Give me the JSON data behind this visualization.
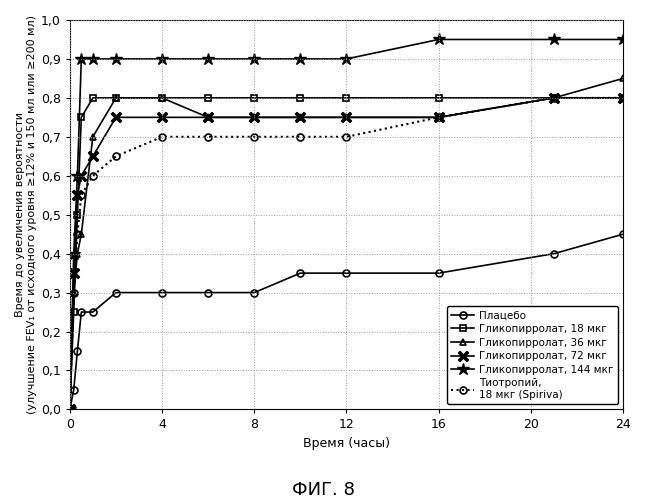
{
  "title": "",
  "xlabel": "Время (часы)",
  "ylabel": "Время до увеличения вероятности\n(улучшение FEV₁ от исходного уровня ≥12% и 150 мл или ≥200 мл)",
  "fig_caption": "ФИГ. 8",
  "xlim": [
    0,
    24
  ],
  "ylim": [
    0.0,
    1.0
  ],
  "xticks": [
    0,
    4,
    8,
    12,
    16,
    20,
    24
  ],
  "yticks": [
    0.0,
    0.1,
    0.2,
    0.3,
    0.4,
    0.5,
    0.6,
    0.7,
    0.8,
    0.9,
    1.0
  ],
  "series": [
    {
      "label": "Плацебо",
      "x": [
        0,
        0.17,
        0.33,
        0.5,
        1,
        2,
        4,
        6,
        8,
        10,
        12,
        16,
        21,
        24
      ],
      "y": [
        0.0,
        0.05,
        0.15,
        0.25,
        0.25,
        0.3,
        0.3,
        0.3,
        0.3,
        0.35,
        0.35,
        0.35,
        0.4,
        0.45
      ],
      "color": "#000000",
      "linestyle": "-",
      "marker": "o",
      "markersize": 5,
      "linewidth": 1.2,
      "fillstyle": "none",
      "markeredgewidth": 1.2
    },
    {
      "label": "Гликопирролат, 18 мкг",
      "x": [
        0,
        0.17,
        0.33,
        0.5,
        1,
        2,
        4,
        6,
        8,
        10,
        12,
        16,
        21,
        24
      ],
      "y": [
        0.0,
        0.25,
        0.5,
        0.75,
        0.8,
        0.8,
        0.8,
        0.8,
        0.8,
        0.8,
        0.8,
        0.8,
        0.8,
        0.8
      ],
      "color": "#000000",
      "linestyle": "-",
      "marker": "s",
      "markersize": 5,
      "linewidth": 1.2,
      "fillstyle": "none",
      "markeredgewidth": 1.2
    },
    {
      "label": "Гликопирролат, 36 мкг",
      "x": [
        0,
        0.17,
        0.33,
        0.5,
        1,
        2,
        4,
        6,
        8,
        10,
        12,
        16,
        21,
        24
      ],
      "y": [
        0.0,
        0.3,
        0.4,
        0.45,
        0.7,
        0.8,
        0.8,
        0.75,
        0.75,
        0.75,
        0.75,
        0.75,
        0.8,
        0.85
      ],
      "color": "#000000",
      "linestyle": "-",
      "marker": "^",
      "markersize": 5,
      "linewidth": 1.2,
      "fillstyle": "none",
      "markeredgewidth": 1.2
    },
    {
      "label": "Гликопирролат, 72 мкг",
      "x": [
        0,
        0.17,
        0.33,
        0.5,
        1,
        2,
        4,
        6,
        8,
        10,
        12,
        16,
        21,
        24
      ],
      "y": [
        0.0,
        0.35,
        0.55,
        0.6,
        0.65,
        0.75,
        0.75,
        0.75,
        0.75,
        0.75,
        0.75,
        0.75,
        0.8,
        0.8
      ],
      "color": "#000000",
      "linestyle": "-",
      "marker": "$\\mathbf{\\times}$",
      "markersize": 7,
      "linewidth": 1.2,
      "fillstyle": "full",
      "markeredgewidth": 1.2
    },
    {
      "label": "Гликопирролат, 144 мкг",
      "x": [
        0,
        0.17,
        0.33,
        0.5,
        1,
        2,
        4,
        6,
        8,
        10,
        12,
        16,
        21,
        24
      ],
      "y": [
        0.0,
        0.4,
        0.6,
        0.9,
        0.9,
        0.9,
        0.9,
        0.9,
        0.9,
        0.9,
        0.9,
        0.95,
        0.95,
        0.95
      ],
      "color": "#000000",
      "linestyle": "-",
      "marker": "*",
      "markersize": 9,
      "linewidth": 1.2,
      "fillstyle": "full",
      "markeredgewidth": 1.0
    },
    {
      "label": "Тиотропий,\n18 мкг (Spiriva)",
      "x": [
        0,
        0.17,
        0.33,
        0.5,
        1,
        2,
        4,
        6,
        8,
        10,
        12,
        16,
        21,
        24
      ],
      "y": [
        0.0,
        0.3,
        0.45,
        0.55,
        0.6,
        0.65,
        0.7,
        0.7,
        0.7,
        0.7,
        0.7,
        0.75,
        0.8,
        0.8
      ],
      "color": "#000000",
      "linestyle": ":",
      "marker": "o",
      "markersize": 5,
      "linewidth": 1.5,
      "fillstyle": "none",
      "markeredgewidth": 1.2
    }
  ],
  "background_color": "#ffffff",
  "grid_color": "#999999",
  "legend_fontsize": 7.5,
  "axis_fontsize": 9,
  "label_fontsize": 8,
  "caption_fontsize": 13
}
